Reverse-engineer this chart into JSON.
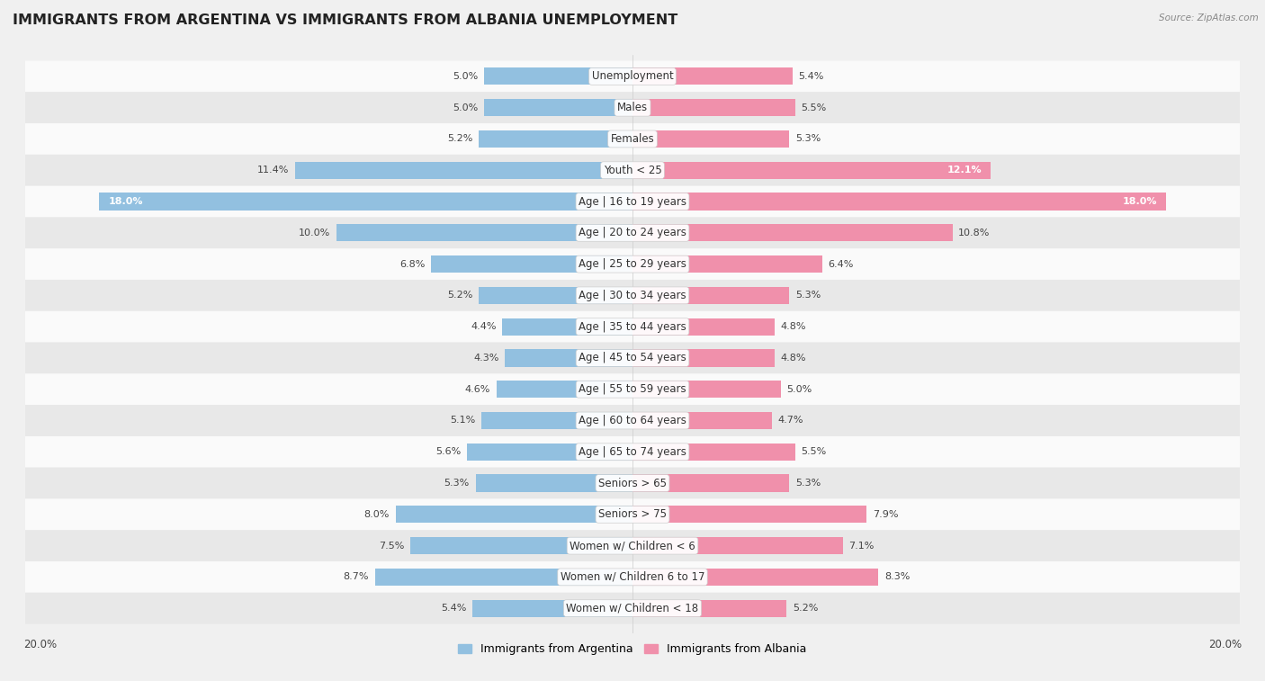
{
  "title": "IMMIGRANTS FROM ARGENTINA VS IMMIGRANTS FROM ALBANIA UNEMPLOYMENT",
  "source": "Source: ZipAtlas.com",
  "categories": [
    "Unemployment",
    "Males",
    "Females",
    "Youth < 25",
    "Age | 16 to 19 years",
    "Age | 20 to 24 years",
    "Age | 25 to 29 years",
    "Age | 30 to 34 years",
    "Age | 35 to 44 years",
    "Age | 45 to 54 years",
    "Age | 55 to 59 years",
    "Age | 60 to 64 years",
    "Age | 65 to 74 years",
    "Seniors > 65",
    "Seniors > 75",
    "Women w/ Children < 6",
    "Women w/ Children 6 to 17",
    "Women w/ Children < 18"
  ],
  "argentina_values": [
    5.0,
    5.0,
    5.2,
    11.4,
    18.0,
    10.0,
    6.8,
    5.2,
    4.4,
    4.3,
    4.6,
    5.1,
    5.6,
    5.3,
    8.0,
    7.5,
    8.7,
    5.4
  ],
  "albania_values": [
    5.4,
    5.5,
    5.3,
    12.1,
    18.0,
    10.8,
    6.4,
    5.3,
    4.8,
    4.8,
    5.0,
    4.7,
    5.5,
    5.3,
    7.9,
    7.1,
    8.3,
    5.2
  ],
  "argentina_color": "#92c0e0",
  "albania_color": "#f090ab",
  "argentina_label": "Immigrants from Argentina",
  "albania_label": "Immigrants from Albania",
  "x_max": 20.0,
  "bg_color": "#f0f0f0",
  "row_color_light": "#fafafa",
  "row_color_dark": "#e8e8e8",
  "title_fontsize": 11.5,
  "label_fontsize": 8.5,
  "value_fontsize": 8.0,
  "axis_fontsize": 8.5
}
